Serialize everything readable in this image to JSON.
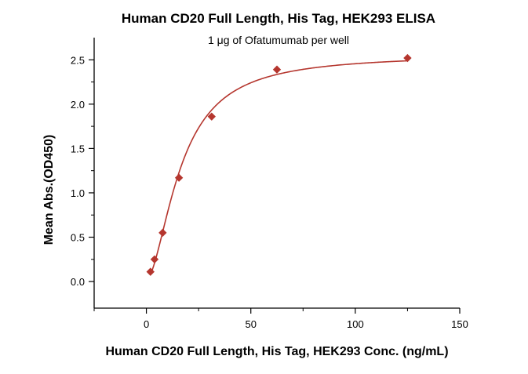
{
  "chart_data": {
    "type": "scatter",
    "title": "Human CD20 Full Length, His Tag, HEK293 ELISA",
    "subtitle": "1 μg of Ofatumumab per well",
    "xlabel": "Human CD20 Full Length, His Tag, HEK293 Conc. (ng/mL)",
    "ylabel": "Mean Abs.(OD450)",
    "xlim": [
      -25,
      150
    ],
    "ylim": [
      -0.3,
      2.75
    ],
    "xticks": [
      0,
      50,
      100,
      150
    ],
    "yticks": [
      0.0,
      0.5,
      1.0,
      1.5,
      2.0,
      2.5
    ],
    "xtick_labels": [
      "0",
      "50",
      "100",
      "150"
    ],
    "ytick_labels": [
      "0.0",
      "0.5",
      "1.0",
      "1.5",
      "2.0",
      "2.5"
    ],
    "grid": false,
    "series": [
      {
        "marker": "diamond",
        "color": "#b5362e",
        "points": [
          {
            "x": 1.95,
            "y": 0.11
          },
          {
            "x": 3.9,
            "y": 0.25
          },
          {
            "x": 7.8,
            "y": 0.55
          },
          {
            "x": 15.6,
            "y": 1.17
          },
          {
            "x": 31.25,
            "y": 1.86
          },
          {
            "x": 62.5,
            "y": 2.39
          },
          {
            "x": 125,
            "y": 2.52
          }
        ]
      }
    ],
    "fit_curve": {
      "type": "four-parameter-logistic",
      "color": "#b5362e",
      "x_range": [
        1.95,
        125
      ]
    }
  }
}
